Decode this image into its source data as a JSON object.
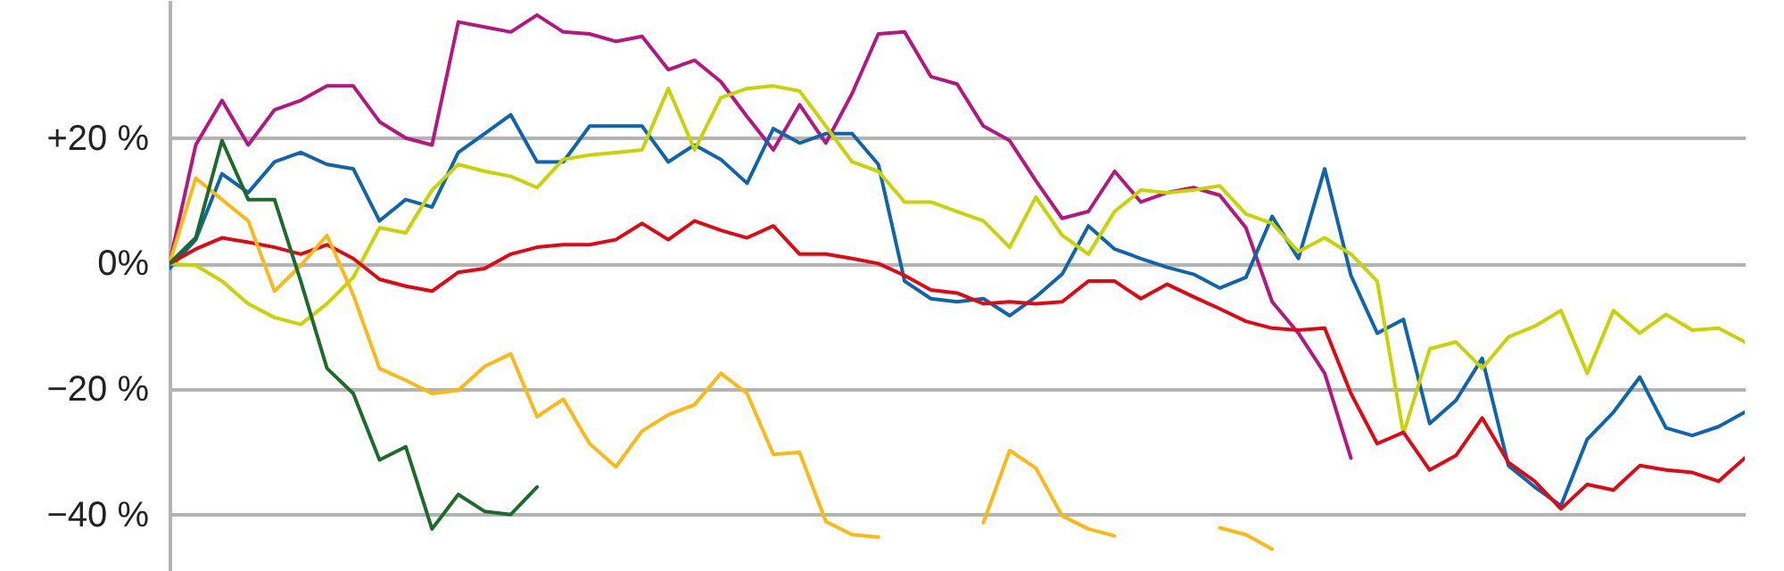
{
  "chart_data": {
    "type": "line",
    "categories": [
      null,
      null,
      null,
      null,
      null,
      null,
      null,
      null,
      null,
      null,
      null,
      null,
      null,
      null,
      null,
      null,
      null,
      null,
      null,
      null,
      null,
      null,
      null,
      null,
      null,
      null,
      null,
      null,
      null,
      null,
      null,
      null,
      null,
      null,
      null,
      null,
      null,
      null,
      null,
      null,
      null,
      null,
      null,
      null,
      null,
      null,
      null,
      null,
      null,
      null,
      null,
      null,
      null,
      null,
      null,
      null,
      null,
      null,
      null,
      null,
      null
    ],
    "series": [
      {
        "color": "#b5177f",
        "values": [
          0,
          18.9,
          26,
          18.9,
          24.5,
          26,
          28.3,
          28.3,
          22.6,
          20,
          18.9,
          38.5,
          37.7,
          36.9,
          39.6,
          36.9,
          36.6,
          35.4,
          36.2,
          30.9,
          32.4,
          29,
          23.4,
          18.1,
          25.3,
          19.2,
          27.1,
          36.6,
          36.9,
          29.8,
          28.6,
          21.9,
          19.6,
          13.2,
          7.2,
          8.3,
          14.7,
          9.8,
          11.3,
          12.1,
          10.9,
          5.7,
          -6.1,
          -11.1,
          -17.5,
          -31,
          null,
          null,
          null,
          null,
          null,
          null,
          null,
          null,
          null,
          null,
          null,
          null,
          null,
          null,
          null
        ]
      },
      {
        "color": "#0e64ad",
        "values": [
          -0.8,
          3.8,
          14.3,
          11.3,
          16.2,
          17.7,
          15.8,
          15.1,
          6.8,
          10.2,
          9,
          17.7,
          20.7,
          23.7,
          16.2,
          16.2,
          21.9,
          21.9,
          21.9,
          16.2,
          18.9,
          16.6,
          12.8,
          21.5,
          19.2,
          20.7,
          20.7,
          15.8,
          -2.8,
          -5.6,
          -6.1,
          -5.6,
          -8.3,
          -5.3,
          -1.7,
          6,
          2.3,
          0.8,
          -0.6,
          -1.7,
          -3.9,
          -2.2,
          7.5,
          0.8,
          15.1,
          -1.9,
          -11.1,
          -8.9,
          -25.5,
          -21.8,
          -15.1,
          -32.2,
          -35.6,
          -38.6,
          -28,
          -23.7,
          -18.1,
          -26.2,
          -27.4,
          -26,
          -23.7
        ]
      },
      {
        "color": "#c8d400",
        "values": [
          0,
          -0.3,
          -2.8,
          -6.4,
          -8.6,
          -9.7,
          -6.4,
          -2.2,
          5.7,
          4.9,
          11.7,
          15.8,
          14.7,
          13.9,
          12.1,
          16.6,
          17.3,
          17.7,
          18.1,
          27.9,
          18.1,
          26.4,
          27.9,
          28.3,
          27.5,
          21.9,
          16.2,
          14.7,
          9.8,
          9.8,
          8.3,
          6.8,
          2.6,
          10.6,
          4.5,
          1.5,
          8.3,
          11.7,
          11.3,
          11.7,
          12.4,
          7.9,
          6.4,
          1.9,
          4.1,
          1.5,
          -2.8,
          -27.1,
          -13.6,
          -12.5,
          -16.7,
          -11.7,
          -10,
          -7.5,
          -17.5,
          -7.5,
          -11.1,
          -8.1,
          -10.6,
          -10.3,
          -12.5
        ]
      },
      {
        "color": "#e30613",
        "values": [
          0,
          2.3,
          4.1,
          3.4,
          2.6,
          1.5,
          3,
          0.8,
          -2.5,
          -3.6,
          -4.4,
          -1.4,
          -0.8,
          1.5,
          2.6,
          3,
          3,
          3.8,
          6.4,
          3.8,
          6.8,
          5.3,
          4.1,
          6,
          1.5,
          1.5,
          0.8,
          0,
          -1.9,
          -4.2,
          -4.7,
          -6.4,
          -6.1,
          -6.4,
          -6.1,
          -2.8,
          -2.8,
          -5.6,
          -3.3,
          -5.3,
          -7.2,
          -9.2,
          -10.3,
          -10.6,
          -10.3,
          -20.7,
          -28.7,
          -26.9,
          -32.9,
          -30.6,
          -24.6,
          -31.7,
          -34.7,
          -39.1,
          -35.2,
          -36.1,
          -32.2,
          -32.9,
          -33.3,
          -34.7,
          -31
        ]
      },
      {
        "color": "#fdb913",
        "values": [
          0,
          13.6,
          10.2,
          6.8,
          -4.4,
          -0.3,
          4.5,
          -5,
          -16.7,
          -18.6,
          -20.7,
          -20.2,
          -16.4,
          -14.4,
          -24.4,
          -21.6,
          -28.7,
          -32.4,
          -26.7,
          -24.1,
          -22.5,
          -17.5,
          -20.7,
          -30.4,
          -30.1,
          -41.1,
          -43.2,
          -43.6,
          null,
          null,
          null,
          -41.3,
          -29.8,
          -32.6,
          -40.2,
          -42.3,
          -43.4,
          null,
          null,
          null,
          -42.1,
          -43.2,
          -45.5,
          null,
          null,
          null,
          null,
          null,
          null,
          null,
          null,
          null,
          null,
          null,
          null,
          null,
          null,
          null,
          null,
          null,
          null
        ]
      },
      {
        "color": "#1d6b2c",
        "values": [
          0,
          4.1,
          19.6,
          10.2,
          10.2,
          -2.8,
          -16.7,
          -20.7,
          -31.3,
          -29.2,
          -42.3,
          -36.8,
          -39.5,
          -40,
          -35.6,
          null,
          null,
          null,
          null,
          null,
          null,
          null,
          null,
          null,
          null,
          null,
          null,
          null,
          null,
          null,
          null,
          null,
          null,
          null,
          null,
          null,
          null,
          null,
          null,
          null,
          null,
          null,
          null,
          null,
          null,
          null,
          null,
          null,
          null,
          null,
          null,
          null,
          null,
          null,
          null,
          null,
          null,
          null,
          null,
          null,
          null
        ]
      }
    ],
    "ylim": [
      -49,
      42
    ],
    "yticks": [
      {
        "value": 20,
        "label": "+20 %"
      },
      {
        "value": 0,
        "label": "0%"
      },
      {
        "value": -20,
        "label": "−20 %"
      },
      {
        "value": -40,
        "label": "−40 %"
      }
    ],
    "grid": "y",
    "tick_labels": "y",
    "marker": "none",
    "line_style": "solid"
  }
}
